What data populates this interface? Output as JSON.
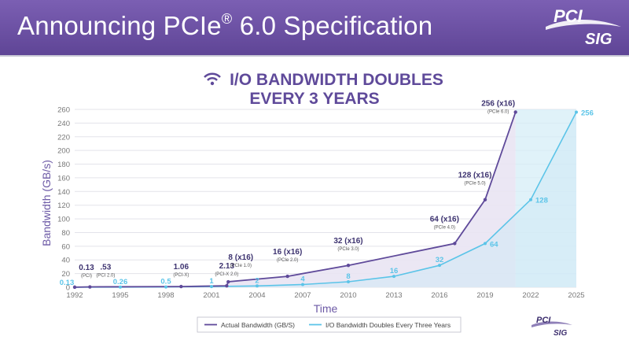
{
  "header": {
    "title_main": "Announcing PCIe",
    "title_reg": "®",
    "title_rest": " 6.0 Specification"
  },
  "logo": {
    "line1": "PCI",
    "line2": "SIG"
  },
  "colors": {
    "banner": "#6a4fa5",
    "actual": "#5f4a9a",
    "doubling": "#5bc4e8",
    "projection_fill": "#d6eef7",
    "area_fill": "#e9e4f3"
  },
  "chart_data": {
    "type": "line",
    "title_line1": "I/O BANDWIDTH DOUBLES",
    "title_line2": "EVERY 3 YEARS",
    "xlabel": "Time",
    "ylabel": "Bandwidth (GB/s)",
    "xlim": [
      1992,
      2025
    ],
    "ylim": [
      0,
      260
    ],
    "y_ticks": [
      0,
      20,
      40,
      60,
      80,
      100,
      120,
      140,
      160,
      180,
      200,
      220,
      240,
      260
    ],
    "x_ticks": [
      1992,
      1995,
      1998,
      2001,
      2004,
      2007,
      2010,
      2013,
      2016,
      2019,
      2022,
      2025
    ],
    "grid": "horizontal",
    "legend_position": "bottom-center",
    "projection_region": [
      2021,
      2025
    ],
    "series": [
      {
        "name": "Actual Bandwidth (GB/S)",
        "color": "#5f4a9a",
        "points": [
          {
            "x": 1992,
            "y": 0.13,
            "label": "0.13",
            "sub": "(PCI)"
          },
          {
            "x": 1993,
            "y": 0.53,
            "label": ".53",
            "sub": "(PCI 2.0)"
          },
          {
            "x": 1999,
            "y": 1.06,
            "label": "1.06",
            "sub": "(PCI-X)"
          },
          {
            "x": 2002,
            "y": 2.13,
            "label": "2.13",
            "sub": "(PCI-X 2.0)"
          },
          {
            "x": 2002.1,
            "y": 8,
            "label": "8 (x16)",
            "sub": "(PCIe 1.0)"
          },
          {
            "x": 2006,
            "y": 16,
            "label": "16 (x16)",
            "sub": "(PCIe 2.0)"
          },
          {
            "x": 2010,
            "y": 32,
            "label": "32 (x16)",
            "sub": "(PCIe 3.0)"
          },
          {
            "x": 2017,
            "y": 64,
            "label": "64 (x16)",
            "sub": "(PCIe 4.0)"
          },
          {
            "x": 2019,
            "y": 128,
            "label": "128 (x16)",
            "sub": "(PCIe 5.0)"
          },
          {
            "x": 2021,
            "y": 256,
            "label": "256 (x16)",
            "sub": "(PCIe 6.0)"
          }
        ]
      },
      {
        "name": "I/O Bandwidth Doubles Every Three Years",
        "color": "#5bc4e8",
        "points": [
          {
            "x": 1992,
            "y": 0.13,
            "label": "0.13"
          },
          {
            "x": 1995,
            "y": 0.26,
            "label": "0.26"
          },
          {
            "x": 1998,
            "y": 0.5,
            "label": "0.5"
          },
          {
            "x": 2001,
            "y": 1,
            "label": "1"
          },
          {
            "x": 2004,
            "y": 2,
            "label": "2"
          },
          {
            "x": 2007,
            "y": 4,
            "label": "4"
          },
          {
            "x": 2010,
            "y": 8,
            "label": "8"
          },
          {
            "x": 2013,
            "y": 16,
            "label": "16"
          },
          {
            "x": 2016,
            "y": 32,
            "label": "32"
          },
          {
            "x": 2019,
            "y": 64,
            "label": "64"
          },
          {
            "x": 2022,
            "y": 128,
            "label": "128"
          },
          {
            "x": 2025,
            "y": 256,
            "label": "256"
          }
        ]
      }
    ]
  }
}
